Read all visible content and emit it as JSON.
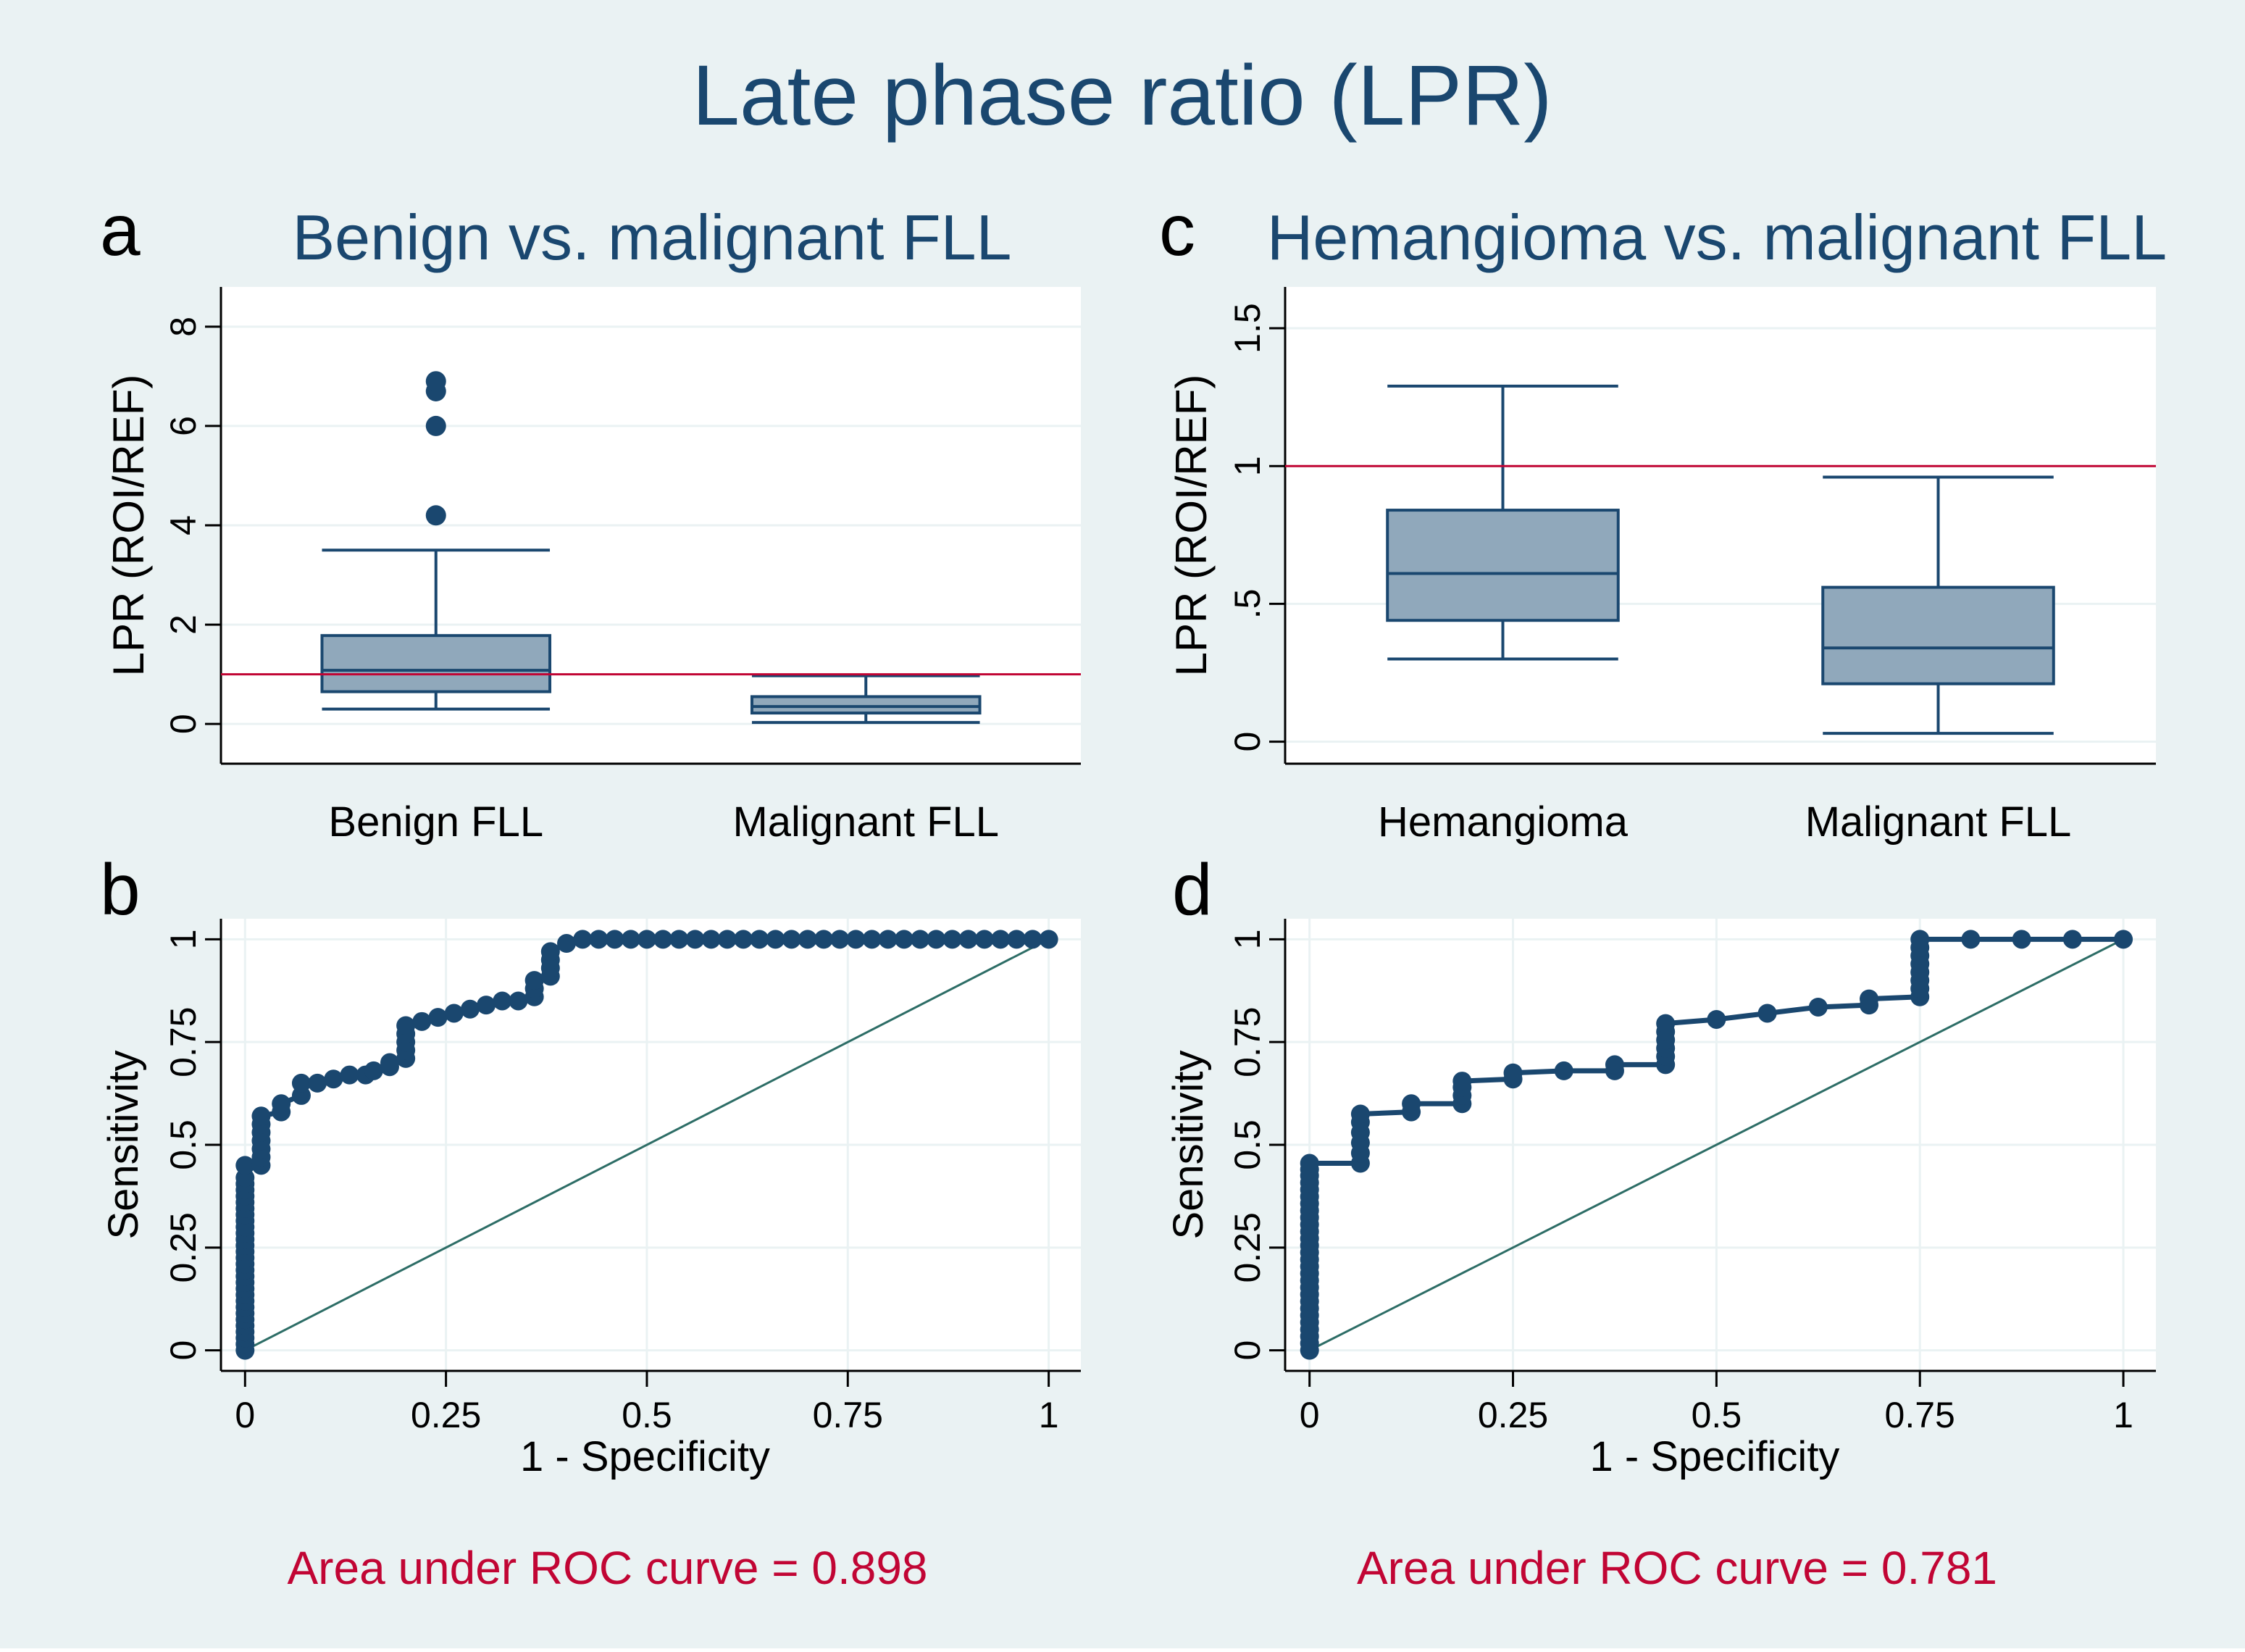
{
  "figure": {
    "title": "Late phase ratio (LPR)",
    "colors": {
      "background": "#eaf2f3",
      "plot_bg": "#ffffff",
      "grid": "#eaf2f3",
      "text": "#1a476f",
      "axis": "#000000",
      "box_fill": "#90a8bb",
      "box_line": "#1a476f",
      "marker": "#1a476f",
      "refline": "#c10534",
      "diagonal": "#2d6d66",
      "auc_text": "#c10534"
    }
  },
  "chart_data": [
    {
      "id": "a",
      "panel_label": "a",
      "type": "box",
      "title": "Benign vs. malignant FLL",
      "xlabel": "",
      "ylabel": "LPR (ROI/REF)",
      "ylim": [
        -0.8,
        8.8
      ],
      "yticks": [
        0,
        2,
        4,
        6,
        8
      ],
      "ytick_labels": [
        "0",
        "2",
        "4",
        "6",
        "8"
      ],
      "reference_line": 1,
      "categories": [
        "Benign FLL",
        "Malignant FLL"
      ],
      "boxes": [
        {
          "category": "Benign FLL",
          "whisker_low": 0.3,
          "q1": 0.65,
          "median": 1.08,
          "q3": 1.78,
          "whisker_high": 3.5,
          "outliers": [
            4.2,
            6.0,
            6.7,
            6.9
          ]
        },
        {
          "category": "Malignant FLL",
          "whisker_low": 0.03,
          "q1": 0.22,
          "median": 0.35,
          "q3": 0.55,
          "whisker_high": 0.97,
          "outliers": []
        }
      ]
    },
    {
      "id": "c",
      "panel_label": "c",
      "type": "box",
      "title": "Hemangioma vs. malignant FLL",
      "xlabel": "",
      "ylabel": "LPR (ROI/REF)",
      "ylim": [
        -0.08,
        1.65
      ],
      "yticks": [
        0,
        0.5,
        1,
        1.5
      ],
      "ytick_labels": [
        "0",
        ".5",
        "1",
        "1.5"
      ],
      "reference_line": 1,
      "categories": [
        "Hemangioma",
        "Malignant FLL"
      ],
      "boxes": [
        {
          "category": "Hemangioma",
          "whisker_low": 0.3,
          "q1": 0.44,
          "median": 0.61,
          "q3": 0.84,
          "whisker_high": 1.29,
          "outliers": []
        },
        {
          "category": "Malignant FLL",
          "whisker_low": 0.03,
          "q1": 0.21,
          "median": 0.34,
          "q3": 0.56,
          "whisker_high": 0.96,
          "outliers": []
        }
      ]
    },
    {
      "id": "b",
      "panel_label": "b",
      "type": "line",
      "title": "",
      "xlabel": "1 - Specificity",
      "ylabel": "Sensitivity",
      "xlim": [
        -0.03,
        1.04
      ],
      "ylim": [
        -0.05,
        1.05
      ],
      "xticks": [
        0,
        0.25,
        0.5,
        0.75,
        1
      ],
      "xtick_labels": [
        "0",
        "0.25",
        "0.5",
        "0.75",
        "1"
      ],
      "yticks": [
        0,
        0.25,
        0.5,
        0.75,
        1
      ],
      "ytick_labels": [
        "0",
        "0.25",
        "0.5",
        "0.75",
        "1"
      ],
      "diagonal": true,
      "auc_label": "Area under ROC curve = 0.898",
      "auc": 0.898,
      "series": [
        {
          "name": "ROC curve",
          "x": [
            0,
            0,
            0,
            0,
            0,
            0,
            0,
            0,
            0,
            0,
            0,
            0,
            0,
            0,
            0,
            0,
            0,
            0,
            0,
            0,
            0,
            0,
            0,
            0,
            0,
            0,
            0,
            0,
            0,
            0,
            0.02,
            0.02,
            0.02,
            0.02,
            0.02,
            0.02,
            0.02,
            0.045,
            0.045,
            0.07,
            0.07,
            0.09,
            0.11,
            0.13,
            0.15,
            0.16,
            0.18,
            0.18,
            0.2,
            0.2,
            0.2,
            0.2,
            0.2,
            0.22,
            0.24,
            0.26,
            0.28,
            0.3,
            0.32,
            0.34,
            0.36,
            0.36,
            0.36,
            0.38,
            0.38,
            0.38,
            0.38,
            0.4,
            0.42,
            0.44,
            0.46,
            0.48,
            0.5,
            0.52,
            0.54,
            0.56,
            0.58,
            0.6,
            0.62,
            0.64,
            0.66,
            0.68,
            0.7,
            0.72,
            0.74,
            0.76,
            0.78,
            0.8,
            0.82,
            0.84,
            0.86,
            0.88,
            0.9,
            0.92,
            0.94,
            0.96,
            0.98,
            1
          ],
          "y": [
            0,
            0.015,
            0.03,
            0.045,
            0.06,
            0.075,
            0.09,
            0.105,
            0.12,
            0.135,
            0.15,
            0.165,
            0.18,
            0.195,
            0.21,
            0.225,
            0.24,
            0.255,
            0.27,
            0.285,
            0.3,
            0.315,
            0.33,
            0.345,
            0.36,
            0.375,
            0.39,
            0.405,
            0.42,
            0.45,
            0.45,
            0.47,
            0.49,
            0.51,
            0.53,
            0.55,
            0.57,
            0.58,
            0.6,
            0.62,
            0.65,
            0.65,
            0.66,
            0.67,
            0.67,
            0.68,
            0.69,
            0.7,
            0.71,
            0.73,
            0.75,
            0.77,
            0.79,
            0.8,
            0.81,
            0.82,
            0.83,
            0.84,
            0.85,
            0.85,
            0.86,
            0.88,
            0.9,
            0.91,
            0.93,
            0.95,
            0.97,
            0.99,
            1,
            1,
            1,
            1,
            1,
            1,
            1,
            1,
            1,
            1,
            1,
            1,
            1,
            1,
            1,
            1,
            1,
            1,
            1,
            1,
            1,
            1,
            1,
            1,
            1,
            1,
            1,
            1,
            1,
            1
          ]
        }
      ]
    },
    {
      "id": "d",
      "panel_label": "d",
      "type": "line",
      "title": "",
      "xlabel": "1 - Specificity",
      "ylabel": "Sensitivity",
      "xlim": [
        -0.03,
        1.04
      ],
      "ylim": [
        -0.05,
        1.05
      ],
      "xticks": [
        0,
        0.25,
        0.5,
        0.75,
        1
      ],
      "xtick_labels": [
        "0",
        "0.25",
        "0.5",
        "0.75",
        "1"
      ],
      "yticks": [
        0,
        0.25,
        0.5,
        0.75,
        1
      ],
      "ytick_labels": [
        "0",
        "0.25",
        "0.5",
        "0.75",
        "1"
      ],
      "diagonal": true,
      "auc_label": "Area under ROC curve = 0.781",
      "auc": 0.781,
      "series": [
        {
          "name": "ROC curve",
          "x": [
            0,
            0,
            0,
            0,
            0,
            0,
            0,
            0,
            0,
            0,
            0,
            0,
            0,
            0,
            0,
            0,
            0,
            0,
            0,
            0,
            0,
            0,
            0,
            0,
            0,
            0,
            0,
            0,
            0.0625,
            0.0625,
            0.0625,
            0.0625,
            0.0625,
            0.0625,
            0.125,
            0.125,
            0.1875,
            0.1875,
            0.1875,
            0.1875,
            0.25,
            0.25,
            0.3125,
            0.375,
            0.375,
            0.4375,
            0.4375,
            0.4375,
            0.4375,
            0.4375,
            0.4375,
            0.5,
            0.5625,
            0.625,
            0.6875,
            0.6875,
            0.75,
            0.75,
            0.75,
            0.75,
            0.75,
            0.75,
            0.75,
            0.75,
            0.8125,
            0.875,
            0.9375,
            1
          ],
          "y": [
            0,
            0.017,
            0.034,
            0.051,
            0.068,
            0.085,
            0.102,
            0.119,
            0.136,
            0.153,
            0.17,
            0.187,
            0.204,
            0.221,
            0.238,
            0.255,
            0.272,
            0.289,
            0.306,
            0.323,
            0.34,
            0.357,
            0.374,
            0.391,
            0.408,
            0.425,
            0.44,
            0.455,
            0.455,
            0.48,
            0.505,
            0.53,
            0.555,
            0.575,
            0.58,
            0.6,
            0.6,
            0.62,
            0.64,
            0.655,
            0.66,
            0.675,
            0.68,
            0.68,
            0.695,
            0.695,
            0.715,
            0.735,
            0.755,
            0.775,
            0.795,
            0.805,
            0.82,
            0.835,
            0.84,
            0.855,
            0.86,
            0.88,
            0.9,
            0.92,
            0.94,
            0.96,
            0.98,
            1,
            1,
            1,
            1,
            1
          ]
        }
      ]
    }
  ]
}
